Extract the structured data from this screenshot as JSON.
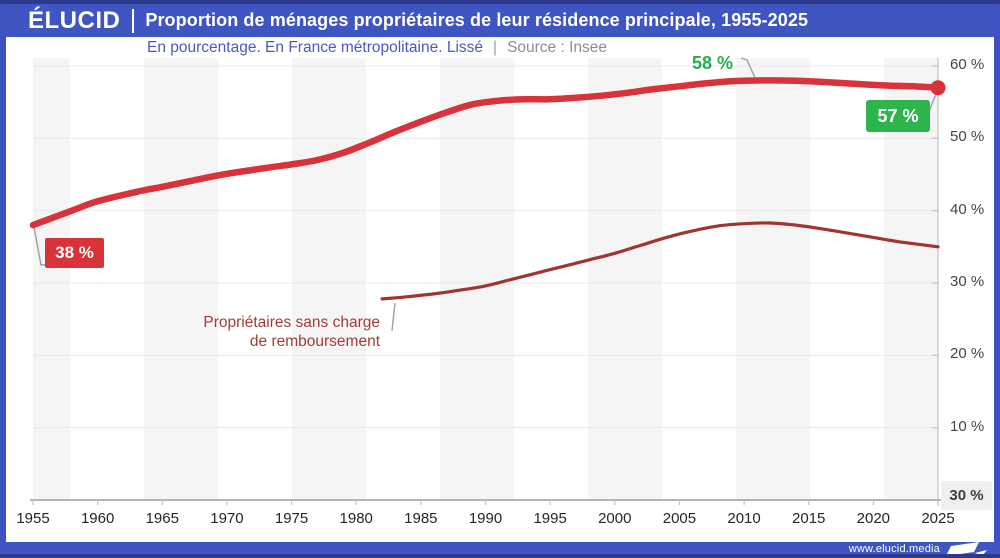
{
  "header": {
    "logo": "ÉLUCID",
    "title": "Proportion de ménages propriétaires de leur résidence principale, 1955-2025"
  },
  "subtitle": {
    "text": "En pourcentage. En France métropolitaine. Lissé",
    "separator": "|",
    "source": "Source : Insee"
  },
  "footer": {
    "url": "www.elucid.media"
  },
  "colors": {
    "frame_blue": "#3f55c2",
    "frame_navy": "#2c3a8e",
    "main_red": "#d8333a",
    "dark_red": "#a23430",
    "green_badge": "#2eb44d",
    "green_text": "#27ae4a"
  },
  "annotations": {
    "start_badge": "38 %",
    "peak_label": "58 %",
    "end_badge": "57 %",
    "floor_badge": "30 %",
    "series2_line1": "Propriétaires sans charge",
    "series2_line2": "de remboursement"
  },
  "chart_data": {
    "type": "line",
    "title": "Proportion de ménages propriétaires de leur résidence principale, 1955-2025",
    "unit": "%",
    "xlabel": "",
    "ylabel": "En pourcentage",
    "x_range": [
      1955,
      2025
    ],
    "y_range": [
      0,
      60
    ],
    "grid": true,
    "y_axis_side": "right",
    "y_ticks": [
      {
        "v": 60,
        "label": "60 %"
      },
      {
        "v": 50,
        "label": "50 %"
      },
      {
        "v": 40,
        "label": "40 %"
      },
      {
        "v": 30,
        "label": "30 %"
      },
      {
        "v": 20,
        "label": "20 %"
      },
      {
        "v": 10,
        "label": "10 %"
      }
    ],
    "x_ticks": [
      1955,
      1960,
      1965,
      1970,
      1975,
      1980,
      1985,
      1990,
      1995,
      2000,
      2005,
      2010,
      2015,
      2020,
      2025
    ],
    "series": [
      {
        "name": "Propriétaires de leur résidence principale",
        "color": "#d8333a",
        "stroke_width": 6.5,
        "points": [
          [
            1955,
            38
          ],
          [
            1958,
            40
          ],
          [
            1960,
            41.3
          ],
          [
            1963,
            42.6
          ],
          [
            1965,
            43.3
          ],
          [
            1968,
            44.4
          ],
          [
            1970,
            45.1
          ],
          [
            1973,
            45.9
          ],
          [
            1975,
            46.4
          ],
          [
            1977,
            47
          ],
          [
            1979,
            48
          ],
          [
            1981,
            49.4
          ],
          [
            1983,
            50.9
          ],
          [
            1985,
            52.3
          ],
          [
            1987,
            53.6
          ],
          [
            1989,
            54.7
          ],
          [
            1991,
            55.2
          ],
          [
            1993,
            55.4
          ],
          [
            1995,
            55.4
          ],
          [
            1997,
            55.6
          ],
          [
            1999,
            55.9
          ],
          [
            2001,
            56.3
          ],
          [
            2003,
            56.8
          ],
          [
            2005,
            57.2
          ],
          [
            2007,
            57.6
          ],
          [
            2009,
            57.9
          ],
          [
            2011,
            58
          ],
          [
            2013,
            58
          ],
          [
            2015,
            57.9
          ],
          [
            2017,
            57.7
          ],
          [
            2019,
            57.5
          ],
          [
            2021,
            57.3
          ],
          [
            2023,
            57.2
          ],
          [
            2025,
            57
          ]
        ]
      },
      {
        "name": "Propriétaires sans charge de remboursement",
        "color": "#a23430",
        "stroke_width": 3.2,
        "points": [
          [
            1982,
            27.8
          ],
          [
            1984,
            28.1
          ],
          [
            1986,
            28.5
          ],
          [
            1988,
            29
          ],
          [
            1990,
            29.6
          ],
          [
            1992,
            30.5
          ],
          [
            1994,
            31.4
          ],
          [
            1996,
            32.3
          ],
          [
            1998,
            33.2
          ],
          [
            2000,
            34.1
          ],
          [
            2002,
            35.2
          ],
          [
            2004,
            36.3
          ],
          [
            2006,
            37.2
          ],
          [
            2008,
            37.9
          ],
          [
            2010,
            38.2
          ],
          [
            2012,
            38.3
          ],
          [
            2014,
            38
          ],
          [
            2016,
            37.5
          ],
          [
            2018,
            36.9
          ],
          [
            2020,
            36.3
          ],
          [
            2022,
            35.7
          ],
          [
            2025,
            35
          ]
        ]
      }
    ],
    "end_dot": {
      "x": 2025,
      "y": 57,
      "color": "#d8333a"
    },
    "callouts": [
      {
        "value": "38 %",
        "at": [
          1955,
          38
        ]
      },
      {
        "value": "58 %",
        "at": [
          2011,
          58
        ]
      },
      {
        "value": "57 %",
        "at": [
          2025,
          57
        ]
      },
      {
        "value": "30 %",
        "at": "axis-baseline"
      }
    ]
  }
}
